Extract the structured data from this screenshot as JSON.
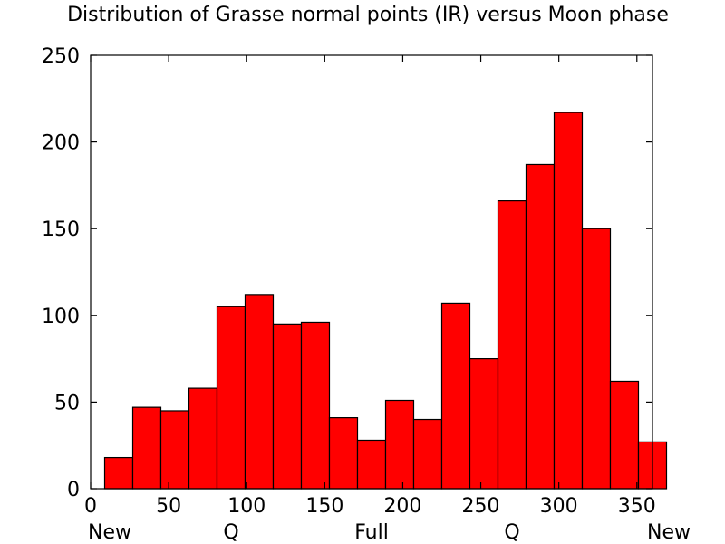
{
  "chart_data": {
    "type": "bar",
    "title": "Distribution of Grasse normal points (IR) versus Moon phase",
    "xlabel": "",
    "ylabel": "",
    "xlim": [
      0,
      360
    ],
    "ylim": [
      0,
      250
    ],
    "grid": false,
    "bar_color": "#ff0000",
    "bar_edge_color": "#000000",
    "x_ticks": [
      0,
      50,
      100,
      150,
      200,
      250,
      300,
      350
    ],
    "y_ticks": [
      0,
      50,
      100,
      150,
      200,
      250
    ],
    "phase_labels": [
      {
        "x": 0,
        "label": "New"
      },
      {
        "x": 90,
        "label": "Q"
      },
      {
        "x": 180,
        "label": "Full"
      },
      {
        "x": 270,
        "label": "Q"
      },
      {
        "x": 360,
        "label": "New"
      }
    ],
    "bins": [
      {
        "start": 9,
        "end": 27,
        "value": 18
      },
      {
        "start": 27,
        "end": 45,
        "value": 47
      },
      {
        "start": 45,
        "end": 63,
        "value": 45
      },
      {
        "start": 63,
        "end": 81,
        "value": 58
      },
      {
        "start": 81,
        "end": 99,
        "value": 105
      },
      {
        "start": 99,
        "end": 117,
        "value": 112
      },
      {
        "start": 117,
        "end": 135,
        "value": 95
      },
      {
        "start": 135,
        "end": 153,
        "value": 96
      },
      {
        "start": 153,
        "end": 171,
        "value": 41
      },
      {
        "start": 171,
        "end": 189,
        "value": 28
      },
      {
        "start": 189,
        "end": 207,
        "value": 51
      },
      {
        "start": 207,
        "end": 225,
        "value": 40
      },
      {
        "start": 225,
        "end": 243,
        "value": 107
      },
      {
        "start": 243,
        "end": 261,
        "value": 75
      },
      {
        "start": 261,
        "end": 279,
        "value": 166
      },
      {
        "start": 279,
        "end": 297,
        "value": 187
      },
      {
        "start": 297,
        "end": 315,
        "value": 217
      },
      {
        "start": 315,
        "end": 333,
        "value": 150
      },
      {
        "start": 333,
        "end": 351,
        "value": 62
      },
      {
        "start": 351,
        "end": 369,
        "value": 27
      }
    ]
  }
}
